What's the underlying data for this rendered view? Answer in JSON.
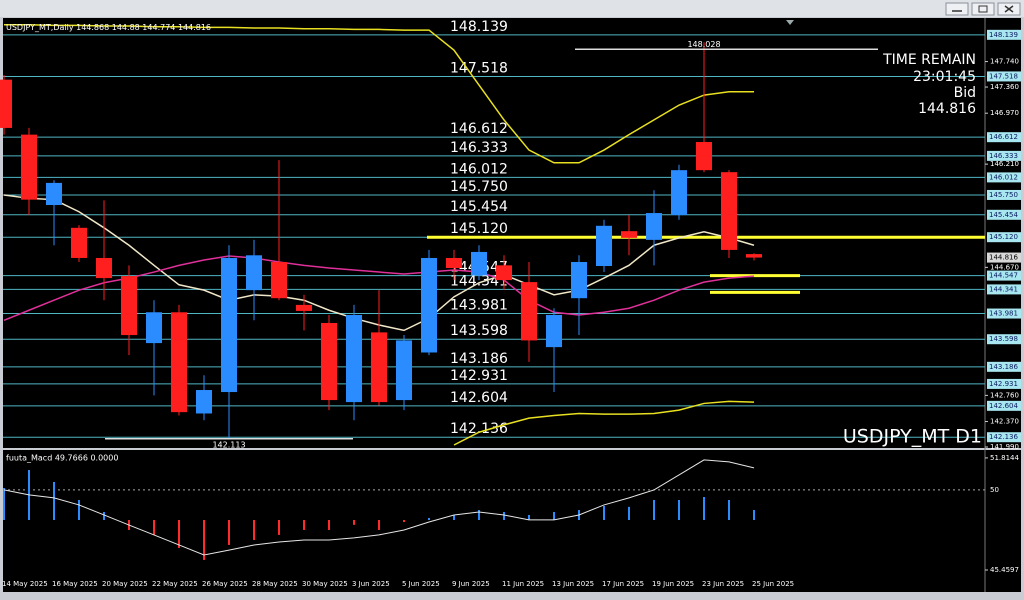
{
  "chart_data": [
    {
      "type": "candlestick",
      "title": "USDJPY_MT,Daily",
      "symbol_label": "USDJPY_MT D1",
      "time_remain_label": "TIME REMAIN",
      "time_remain": "23:01:45",
      "bid_label": "Bid",
      "bid": 144.816,
      "categories": [
        "14 May 2025",
        null,
        "16 May 2025",
        null,
        "20 May 2025",
        null,
        "22 May 2025",
        null,
        "26 May 2025",
        null,
        "28 May 2025",
        null,
        "30 May 2025",
        null,
        "3 Jun 2025",
        null,
        "5 Jun 2025",
        null,
        "9 Jun 2025",
        null,
        "11 Jun 2025",
        null,
        "13 Jun 2025",
        null,
        "17 Jun 2025",
        null,
        "19 Jun 2025",
        null,
        "23 Jun 2025",
        null,
        "25 Jun 2025"
      ],
      "open": [
        147.47,
        146.65,
        145.6,
        145.26,
        144.81,
        144.54,
        143.54,
        144.0,
        142.49,
        142.81,
        144.33,
        144.75,
        144.11,
        143.84,
        142.66,
        143.7,
        142.69,
        143.4,
        144.81,
        144.55,
        144.7,
        144.45,
        143.48,
        144.21,
        144.69,
        145.21,
        145.08,
        145.45,
        146.54,
        146.09,
        144.868
      ],
      "high": [
        147.54,
        146.75,
        145.97,
        145.3,
        145.67,
        144.7,
        144.18,
        144.11,
        143.06,
        145.0,
        145.08,
        146.27,
        144.26,
        143.96,
        144.11,
        144.33,
        143.66,
        144.93,
        144.93,
        145.0,
        144.85,
        144.75,
        144.06,
        144.85,
        145.38,
        145.45,
        145.82,
        146.2,
        148.028,
        146.12,
        144.88
      ],
      "low": [
        146.65,
        145.45,
        145.0,
        144.75,
        144.18,
        143.36,
        142.76,
        142.46,
        142.39,
        142.113,
        143.88,
        144.18,
        143.73,
        142.54,
        142.39,
        142.61,
        142.54,
        143.36,
        144.48,
        144.48,
        144.33,
        143.26,
        142.81,
        143.66,
        144.6,
        144.85,
        144.7,
        145.38,
        146.09,
        144.81,
        144.774
      ],
      "close": [
        146.75,
        145.68,
        145.93,
        144.81,
        144.51,
        143.66,
        144.0,
        142.51,
        142.84,
        144.81,
        144.85,
        144.21,
        144.02,
        142.69,
        143.96,
        142.66,
        143.58,
        144.81,
        144.66,
        144.9,
        144.48,
        143.58,
        143.96,
        144.75,
        145.29,
        145.11,
        145.48,
        146.12,
        146.12,
        144.93,
        144.816
      ],
      "up_color": "#2b8cff",
      "down_color": "#ff1f1f",
      "ylim": [
        141.99,
        148.39
      ],
      "yticks": [
        {
          "value": 147.74,
          "label": "147.740"
        },
        {
          "value": 147.36,
          "label": "147.360"
        },
        {
          "value": 146.97,
          "label": "146.970"
        },
        {
          "value": 146.21,
          "label": "146.210"
        },
        {
          "value": 144.67,
          "label": "144.670"
        },
        {
          "value": 142.76,
          "label": "142.760"
        },
        {
          "value": 142.37,
          "label": "142.370"
        },
        {
          "value": 141.99,
          "label": "141.990"
        }
      ],
      "levels": [
        148.139,
        147.518,
        146.612,
        146.333,
        146.012,
        {
          "value": 145.75,
          "label": "145.750"
        },
        145.454,
        {
          "value": 145.12,
          "label": "145.120"
        },
        144.547,
        144.341,
        143.981,
        143.598,
        143.186,
        142.931,
        142.604,
        142.136
      ],
      "level_color": "#4fb6c4",
      "highlight_color": "#ffff33",
      "lines": [
        {
          "color": "#f0e6c8",
          "values": [
            145.75,
            145.7,
            145.68,
            145.5,
            145.26,
            145.0,
            144.7,
            144.41,
            144.33,
            144.18,
            144.26,
            144.24,
            144.18,
            144.03,
            143.91,
            143.81,
            143.73,
            143.91,
            144.23,
            144.44,
            144.56,
            144.41,
            144.26,
            144.33,
            144.51,
            144.7,
            145.0,
            145.11,
            145.2,
            145.11,
            145.0
          ]
        },
        {
          "color": "#e0309a",
          "values": [
            143.88,
            144.03,
            144.18,
            144.33,
            144.44,
            144.51,
            144.6,
            144.7,
            144.78,
            144.84,
            144.81,
            144.75,
            144.7,
            144.66,
            144.63,
            144.6,
            144.57,
            144.6,
            144.63,
            144.6,
            144.48,
            144.18,
            144.0,
            143.96,
            144.0,
            144.06,
            144.18,
            144.33,
            144.45,
            144.51,
            144.54
          ]
        },
        {
          "color": "#e8e020",
          "values": [
            148.29,
            148.29,
            148.28,
            148.28,
            148.27,
            148.27,
            148.26,
            148.26,
            148.25,
            148.25,
            148.24,
            148.24,
            148.23,
            148.23,
            148.22,
            148.22,
            148.21,
            148.21,
            147.91,
            147.39,
            146.87,
            146.42,
            146.23,
            146.23,
            146.42,
            146.65,
            146.87,
            147.09,
            147.24,
            147.29,
            147.29
          ]
        },
        {
          "color": "#e8e020",
          "values": [
            null,
            null,
            null,
            null,
            null,
            null,
            null,
            null,
            null,
            null,
            null,
            null,
            null,
            null,
            null,
            null,
            null,
            null,
            142.02,
            142.21,
            142.32,
            142.42,
            142.46,
            142.49,
            142.48,
            142.48,
            142.49,
            142.54,
            142.64,
            142.67,
            142.66
          ]
        }
      ]
    },
    {
      "type": "macd",
      "label": "fuuta_Macd 49.7666 0.0000",
      "values": [
        50.11,
        51.13,
        50.45,
        49.43,
        48.75,
        47.73,
        47.45,
        46.71,
        46.03,
        46.88,
        47.16,
        47.45,
        47.73,
        47.73,
        48.02,
        47.73,
        48.18,
        48.41,
        48.58,
        48.86,
        48.75,
        48.58,
        48.75,
        48.86,
        49.09,
        49.04,
        49.43,
        49.43,
        49.6,
        49.43,
        48.86
      ],
      "line_values": [
        50.0,
        49.72,
        49.55,
        49.15,
        48.58,
        48.01,
        47.45,
        46.88,
        46.31,
        46.59,
        46.88,
        47.05,
        47.16,
        47.16,
        47.28,
        47.45,
        47.73,
        48.18,
        48.58,
        48.75,
        48.58,
        48.3,
        48.3,
        48.58,
        49.15,
        49.55,
        50.0,
        50.85,
        51.7,
        51.59,
        51.25
      ],
      "up_color": "#2b8cff",
      "down_color": "#ff2a2a",
      "line_color": "#e6e6e6",
      "ylim": [
        44.44,
        52.15
      ],
      "yticks": [
        51.8144,
        45.4597
      ],
      "levels": [
        50
      ]
    }
  ]
}
